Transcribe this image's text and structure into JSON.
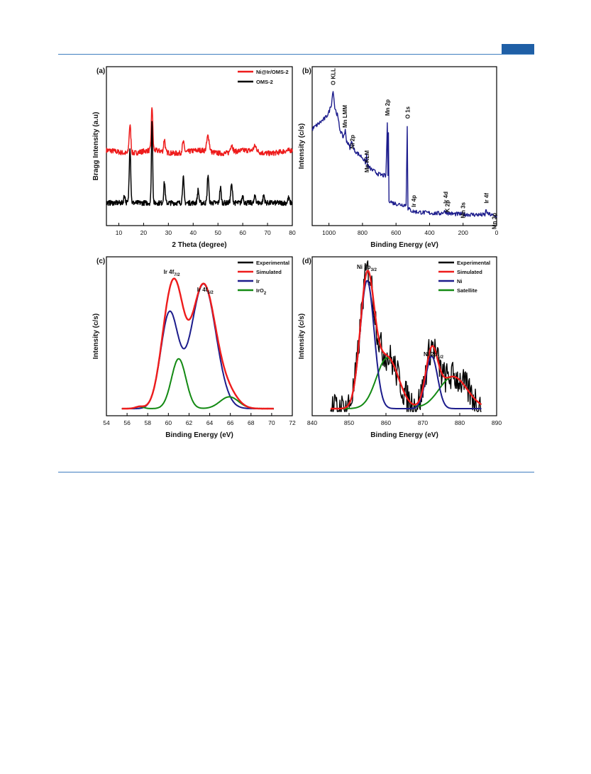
{
  "page": {
    "accent": "#1f5fa6",
    "rule_color": "#3f7ebf"
  },
  "chart_data": [
    {
      "type": "line",
      "panel": "(a)",
      "xlabel": "2 Theta (degree)",
      "ylabel": "Bragg Intensity (a.u)",
      "xlim": [
        5,
        80
      ],
      "xticks": [
        10,
        20,
        30,
        40,
        50,
        60,
        70,
        80
      ],
      "legend_position": "top-right",
      "series": [
        {
          "name": "Ni@Ir/OMS-2",
          "color": "#ee1c1c",
          "baseline": 0.0,
          "offset": 1.0,
          "noise": 0.05,
          "peaks": [
            [
              14.5,
              0.55,
              0.35
            ],
            [
              23.4,
              0.85,
              0.3
            ],
            [
              28.4,
              0.25,
              0.3
            ],
            [
              36.0,
              0.2,
              0.4
            ],
            [
              46.0,
              0.3,
              0.5
            ],
            [
              55.5,
              0.15,
              0.5
            ],
            [
              65.0,
              0.1,
              0.6
            ]
          ]
        },
        {
          "name": "OMS-2",
          "color": "#000000",
          "baseline": 0.0,
          "offset": 0.0,
          "noise": 0.05,
          "peaks": [
            [
              12.3,
              0.15,
              0.3
            ],
            [
              14.5,
              1.1,
              0.3
            ],
            [
              23.4,
              1.6,
              0.25
            ],
            [
              28.4,
              0.4,
              0.3
            ],
            [
              36.0,
              0.5,
              0.3
            ],
            [
              42.0,
              0.25,
              0.3
            ],
            [
              46.0,
              0.55,
              0.3
            ],
            [
              51.0,
              0.3,
              0.3
            ],
            [
              55.5,
              0.35,
              0.35
            ],
            [
              60.0,
              0.15,
              0.3
            ],
            [
              65.0,
              0.15,
              0.3
            ],
            [
              68.5,
              0.15,
              0.3
            ],
            [
              78.5,
              0.1,
              0.3
            ]
          ]
        }
      ]
    },
    {
      "type": "line",
      "panel": "(b)",
      "xlabel": "Binding Energy (eV)",
      "ylabel": "Intensity (c/s)",
      "xlim": [
        1100,
        0
      ],
      "xticks": [
        1000,
        800,
        600,
        400,
        200,
        0
      ],
      "series": [
        {
          "name": "survey",
          "color": "#1c1c8c",
          "points": [
            [
              1100,
              0.62
            ],
            [
              1060,
              0.66
            ],
            [
              1020,
              0.7
            ],
            [
              1000,
              0.74
            ],
            [
              985,
              0.8
            ],
            [
              975,
              0.9
            ],
            [
              965,
              0.77
            ],
            [
              950,
              0.72
            ],
            [
              935,
              0.62
            ],
            [
              915,
              0.56
            ],
            [
              903,
              0.61
            ],
            [
              895,
              0.54
            ],
            [
              875,
              0.49
            ],
            [
              862,
              0.54
            ],
            [
              855,
              0.48
            ],
            [
              830,
              0.45
            ],
            [
              800,
              0.42
            ],
            [
              780,
              0.38
            ],
            [
              775,
              0.44
            ],
            [
              770,
              0.36
            ],
            [
              740,
              0.33
            ],
            [
              700,
              0.3
            ],
            [
              660,
              0.29
            ],
            [
              652,
              0.66
            ],
            [
              648,
              0.3
            ],
            [
              645,
              0.58
            ],
            [
              642,
              0.12
            ],
            [
              620,
              0.1
            ],
            [
              580,
              0.09
            ],
            [
              540,
              0.085
            ],
            [
              533,
              0.65
            ],
            [
              529,
              0.06
            ],
            [
              500,
              0.04
            ],
            [
              460,
              0.035
            ],
            [
              420,
              0.03
            ],
            [
              380,
              0.028
            ],
            [
              340,
              0.025
            ],
            [
              305,
              0.04
            ],
            [
              295,
              0.03
            ],
            [
              260,
              0.022
            ],
            [
              200,
              0.02
            ],
            [
              150,
              0.018
            ],
            [
              100,
              0.016
            ],
            [
              70,
              0.015
            ],
            [
              62,
              0.055
            ],
            [
              55,
              0.02
            ],
            [
              40,
              0.02
            ],
            [
              20,
              0.008
            ],
            [
              0,
              0.006
            ]
          ]
        }
      ],
      "annotations": [
        {
          "text": "O KLL",
          "x": 975
        },
        {
          "text": "Mn LMM",
          "x": 905
        },
        {
          "text": "Ni 2p",
          "x": 862
        },
        {
          "text": "Mn KLM",
          "x": 775
        },
        {
          "text": "Mn 2p",
          "x": 652
        },
        {
          "text": "O 1s",
          "x": 531
        },
        {
          "text": "Ir 4p",
          "x": 495
        },
        {
          "text": "Ir 4d",
          "x": 305
        },
        {
          "text": "K 2p",
          "x": 293
        },
        {
          "text": "Mn 3s",
          "x": 200
        },
        {
          "text": "Ir 4f",
          "x": 62
        },
        {
          "text": "Mn 3p",
          "x": 15
        }
      ]
    },
    {
      "type": "line",
      "panel": "(c)",
      "xlabel": "Binding Energy (eV)",
      "ylabel": "Intensity (c/s)",
      "xlim": [
        54,
        72
      ],
      "xticks": [
        54,
        56,
        58,
        60,
        62,
        64,
        66,
        68,
        70,
        72
      ],
      "legend_position": "top-right",
      "series": [
        {
          "name": "Experimental",
          "color": "#000000"
        },
        {
          "name": "Simulated",
          "color": "#ee1c1c"
        },
        {
          "name": "Ir",
          "color": "#1c1c8c"
        },
        {
          "name": "IrO",
          "name_sub": "2",
          "color": "#138a13"
        }
      ],
      "peaks": {
        "Ir": [
          [
            60.1,
            0.72,
            0.85
          ],
          [
            63.4,
            0.95,
            1.2
          ]
        ],
        "IrO2": [
          [
            61.0,
            0.38,
            0.7
          ],
          [
            65.9,
            0.09,
            0.9
          ],
          [
            57.2,
            0.015,
            0.4
          ]
        ]
      },
      "annotations": [
        {
          "text": "Ir 4f",
          "sub": "7/2",
          "x": 60.5
        },
        {
          "text": "Ir 4f",
          "sub": "5/2",
          "x": 63.6
        }
      ]
    },
    {
      "type": "line",
      "panel": "(d)",
      "xlabel": "Binding Energy (eV)",
      "ylabel": "Intensity (c/s)",
      "xlim": [
        840,
        890
      ],
      "xticks": [
        840,
        850,
        860,
        870,
        880,
        890
      ],
      "legend_position": "top-right",
      "series": [
        {
          "name": "Experimental",
          "color": "#000000"
        },
        {
          "name": "Simulated",
          "color": "#ee1c1c"
        },
        {
          "name": "Ni",
          "color": "#1c1c8c"
        },
        {
          "name": "Satellite",
          "color": "#138a13"
        }
      ],
      "peaks": {
        "Ni": [
          [
            854.9,
            0.88,
            1.9
          ],
          [
            872.4,
            0.36,
            1.6
          ]
        ],
        "Satellite": [
          [
            860.4,
            0.35,
            3.0
          ],
          [
            878.2,
            0.22,
            3.8
          ]
        ]
      },
      "exp_range": [
        845,
        886
      ],
      "annotations": [
        {
          "text": "Ni 2p",
          "sub": "3/2",
          "x": 855
        },
        {
          "text": "Ni 2p",
          "sub": "1/2",
          "x": 872.5
        }
      ]
    }
  ]
}
